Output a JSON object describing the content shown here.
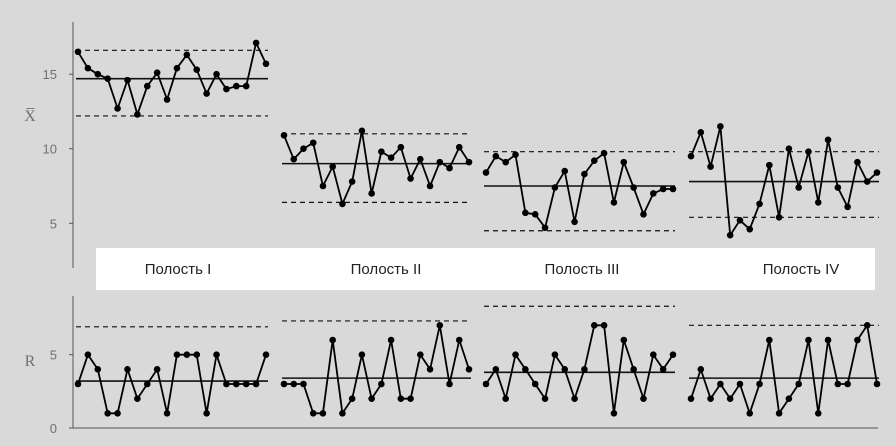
{
  "chart_data": [
    {
      "type": "line",
      "name": "xbar-chart",
      "ylabel": "X̅",
      "ylim": [
        2,
        18.5
      ],
      "yticks": [
        5,
        10,
        15
      ],
      "grid": false,
      "segments": [
        {
          "label": "Полость I",
          "values": [
            16.5,
            15.4,
            15.0,
            14.7,
            12.7,
            14.6,
            12.3,
            14.2,
            15.1,
            13.3,
            15.4,
            16.3,
            15.3,
            13.7,
            15.0,
            14.0,
            14.2,
            14.2,
            17.1,
            15.7
          ],
          "center": 14.7,
          "ucl": 16.6,
          "lcl": 12.2
        },
        {
          "label": "Полость II",
          "values": [
            10.9,
            9.3,
            10.0,
            10.4,
            7.5,
            8.8,
            6.3,
            7.8,
            11.2,
            7.0,
            9.8,
            9.4,
            10.1,
            8.0,
            9.3,
            7.5,
            9.1,
            8.7,
            10.1,
            9.1
          ],
          "center": 9.0,
          "ucl": 11.0,
          "lcl": 6.4
        },
        {
          "label": "Полость III",
          "values": [
            8.4,
            9.5,
            9.1,
            9.6,
            5.7,
            5.6,
            4.7,
            7.4,
            8.5,
            5.1,
            8.3,
            9.2,
            9.7,
            6.4,
            9.1,
            7.4,
            5.6,
            7.0,
            7.3,
            7.3
          ],
          "center": 7.5,
          "ucl": 9.8,
          "lcl": 4.5
        },
        {
          "label": "Полость IV",
          "values": [
            9.5,
            11.1,
            8.8,
            11.5,
            4.2,
            5.2,
            4.6,
            6.3,
            8.9,
            5.4,
            10.0,
            7.4,
            9.8,
            6.4,
            10.6,
            7.4,
            6.1,
            9.1,
            7.8,
            8.4
          ],
          "center": 7.8,
          "ucl": 9.8,
          "lcl": 5.4
        }
      ]
    },
    {
      "type": "line",
      "name": "range-chart",
      "ylabel": "R",
      "ylim": [
        0,
        9
      ],
      "yticks": [
        0,
        5
      ],
      "grid": false,
      "segments": [
        {
          "values": [
            3,
            5,
            4,
            1,
            1,
            4,
            2,
            3,
            4,
            1,
            5,
            5,
            5,
            1,
            5,
            3,
            3,
            3,
            3,
            5
          ],
          "center": 3.2,
          "ucl": 6.9
        },
        {
          "values": [
            3,
            3,
            3,
            1,
            1,
            6,
            1,
            2,
            5,
            2,
            3,
            6,
            2,
            2,
            5,
            4,
            7,
            3,
            6,
            4
          ],
          "center": 3.4,
          "ucl": 7.3
        },
        {
          "values": [
            3,
            4,
            2,
            5,
            4,
            3,
            2,
            5,
            4,
            2,
            4,
            7,
            7,
            1,
            6,
            4,
            2,
            5,
            4,
            5
          ],
          "center": 3.8,
          "ucl": 8.3
        },
        {
          "values": [
            2,
            4,
            2,
            3,
            2,
            3,
            1,
            3,
            6,
            1,
            2,
            3,
            6,
            1,
            6,
            3,
            3,
            6,
            7,
            3
          ],
          "center": 3.4,
          "ucl": 7.0
        }
      ]
    }
  ]
}
